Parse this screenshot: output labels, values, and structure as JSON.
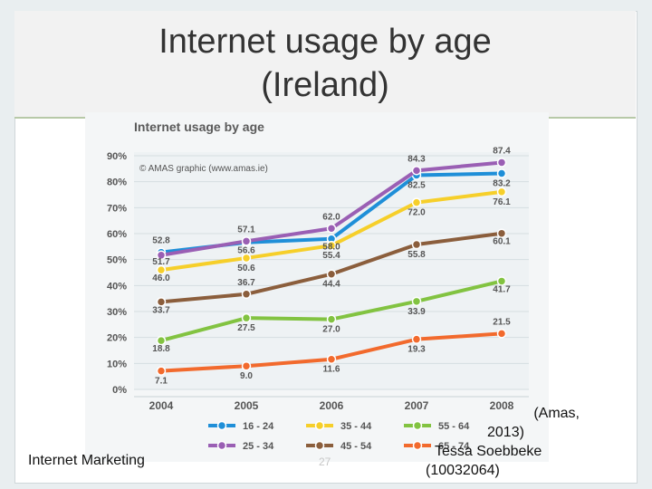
{
  "slide": {
    "title_line1": "Internet usage by age",
    "title_line2": "(Ireland)",
    "footer_left": "Internet Marketing",
    "page_number": "27",
    "citation_line1": "(Amas,",
    "citation_line2": "2013)",
    "citation_line3": "Tessa Soebbeke",
    "citation_line4": "(10032064)"
  },
  "chart_data": {
    "type": "line",
    "title": "Internet usage by age",
    "annotation": "© AMAS graphic (www.amas.ie)",
    "categories": [
      "2004",
      "2005",
      "2006",
      "2007",
      "2008"
    ],
    "y_ticks": [
      "0%",
      "10%",
      "20%",
      "30%",
      "40%",
      "50%",
      "60%",
      "70%",
      "80%",
      "90%"
    ],
    "ylim": [
      0,
      90
    ],
    "grid": true,
    "legend_position": "bottom",
    "series": [
      {
        "name": "16 - 24",
        "color": "#1f8fd8",
        "values": [
          52.8,
          56.6,
          58.0,
          82.5,
          83.2
        ],
        "labels": [
          "52.8",
          "56.6",
          "58.0",
          "82.5",
          "83.2"
        ]
      },
      {
        "name": "25 - 34",
        "color": "#9a5fb4",
        "values": [
          51.7,
          57.1,
          62.0,
          84.3,
          87.4
        ],
        "labels": [
          "51.7",
          "57.1",
          "62.0",
          "84.3",
          "87.4"
        ]
      },
      {
        "name": "35 - 44",
        "color": "#f6cf2a",
        "values": [
          46.0,
          50.6,
          55.4,
          72.0,
          76.1
        ],
        "labels": [
          "46.0",
          "50.6",
          "55.4",
          "72.0",
          "76.1"
        ]
      },
      {
        "name": "45 - 54",
        "color": "#8b5e3c",
        "values": [
          33.7,
          36.7,
          44.4,
          55.8,
          60.1
        ],
        "labels": [
          "33.7",
          "36.7",
          "44.4",
          "55.8",
          "60.1"
        ]
      },
      {
        "name": "55 - 64",
        "color": "#82c341",
        "values": [
          18.8,
          27.5,
          27.0,
          33.9,
          41.7
        ],
        "labels": [
          "18.8",
          "27.5",
          "27.0",
          "33.9",
          "41.7"
        ]
      },
      {
        "name": "65 - 74",
        "color": "#f26a2d",
        "values": [
          7.1,
          9.0,
          11.6,
          19.3,
          21.5
        ],
        "labels": [
          "7.1",
          "9.0",
          "11.6",
          "19.3",
          "21.5"
        ]
      }
    ]
  }
}
